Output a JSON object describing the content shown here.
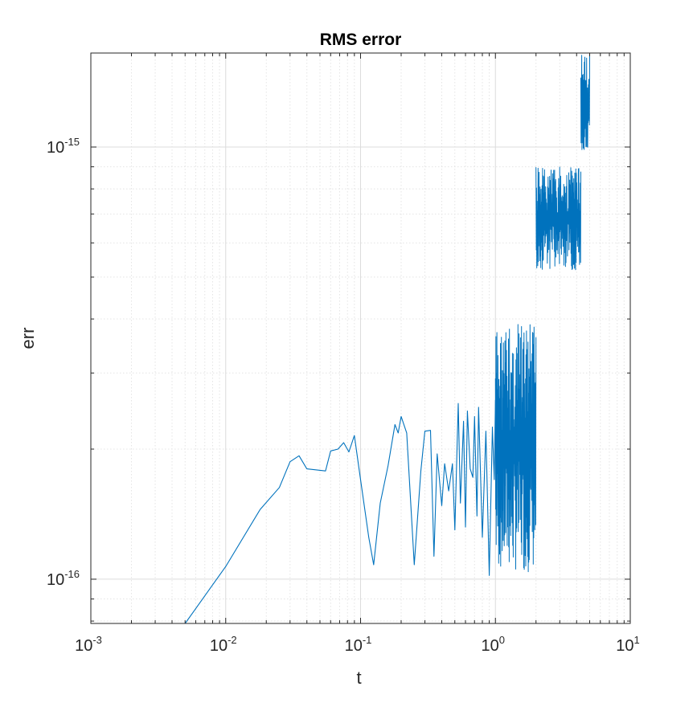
{
  "colors": {
    "series": "#0072BD",
    "axis": "#262626",
    "grid_major": "#dcdcdc",
    "grid_minor": "#e4e4e4"
  },
  "chart_data": {
    "type": "line",
    "title": "RMS error",
    "xlabel": "t",
    "ylabel": "err",
    "xscale": "log",
    "yscale": "log",
    "xlim": [
      0.001,
      10
    ],
    "ylim": [
      7.9e-17,
      1.65e-15
    ],
    "grid": "on (major and minor)",
    "legend": "none",
    "x_ticks": [
      {
        "base": "10",
        "exp": "-3",
        "value": 0.001
      },
      {
        "base": "10",
        "exp": "-2",
        "value": 0.01
      },
      {
        "base": "10",
        "exp": "-1",
        "value": 0.1
      },
      {
        "base": "10",
        "exp": "0",
        "value": 1
      },
      {
        "base": "10",
        "exp": "1",
        "value": 10
      }
    ],
    "y_ticks": [
      {
        "base": "10",
        "exp": "-16",
        "value": 1e-16
      },
      {
        "base": "10",
        "exp": "-15",
        "value": 1e-15
      }
    ],
    "series": [
      {
        "color": "#0072BD",
        "x": [
          0.005,
          0.01,
          0.018,
          0.025,
          0.03,
          0.035,
          0.04,
          0.055,
          0.06,
          0.068,
          0.075,
          0.082,
          0.09,
          0.1,
          0.115,
          0.125,
          0.14,
          0.16,
          0.18,
          0.19,
          0.2,
          0.22,
          0.25,
          0.28,
          0.3,
          0.33,
          0.35,
          0.37,
          0.4,
          0.42,
          0.45,
          0.48,
          0.5,
          0.53,
          0.55,
          0.58,
          0.6,
          0.62,
          0.65,
          0.68,
          0.7,
          0.73,
          0.75,
          0.8,
          0.85,
          0.9,
          0.95,
          0.98,
          1.0
        ],
        "y": [
          7.9e-17,
          1.07e-16,
          1.45e-16,
          1.63e-16,
          1.87e-16,
          1.93e-16,
          1.8e-16,
          1.78e-16,
          1.98e-16,
          2e-16,
          2.07e-16,
          1.97e-16,
          2.15e-16,
          1.7e-16,
          1.25e-16,
          1.08e-16,
          1.5e-16,
          1.83e-16,
          2.28e-16,
          2.18e-16,
          2.38e-16,
          2.18e-16,
          1.08e-16,
          1.78e-16,
          2.2e-16,
          2.21e-16,
          1.13e-16,
          1.95e-16,
          1.48e-16,
          1.85e-16,
          1.6e-16,
          1.85e-16,
          1.3e-16,
          2.55e-16,
          1.5e-16,
          2.32e-16,
          1.32e-16,
          2.45e-16,
          1.8e-16,
          1.72e-16,
          2.38e-16,
          1.4e-16,
          2.5e-16,
          1.25e-16,
          2.2e-16,
          1.02e-16,
          2.25e-16,
          1.7e-16,
          2.6e-16
        ]
      }
    ],
    "noisy_segments": [
      {
        "x_start": 1.0,
        "x_end": 2.0,
        "y_low": 1.04e-16,
        "y_high": 3.9e-16
      },
      {
        "x_start": 2.0,
        "x_end": 4.3,
        "y_low": 5.2e-16,
        "y_high": 9e-16
      },
      {
        "x_start": 4.3,
        "x_end": 5.0,
        "y_low": 9.5e-16,
        "y_high": 1.65e-15
      }
    ]
  }
}
